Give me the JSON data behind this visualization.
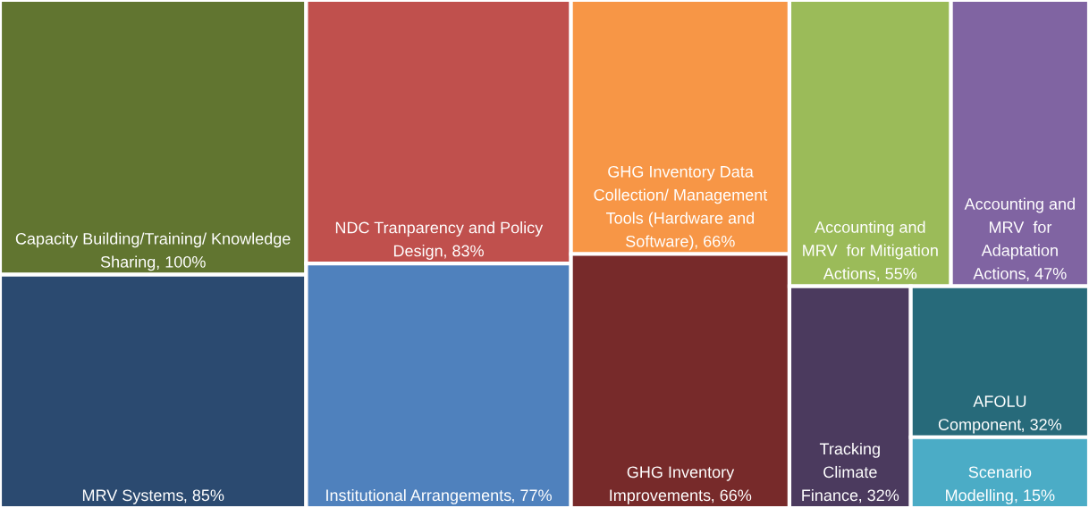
{
  "chart_data": {
    "type": "other",
    "categories": [
      "Capacity Building/Training/ Knowledge Sharing",
      "MRV Systems",
      "NDC Tranparency and Policy Design",
      "Institutional Arrangements",
      "GHG Inventory Data Collection/ Management Tools (Hardware and Software)",
      "GHG Inventory Improvements",
      "Accounting and MRV  for Mitigation Actions",
      "Accounting and MRV  for Adaptation Actions",
      "Tracking Climate Finance",
      "AFOLU Component",
      "Scenario Modelling"
    ],
    "values": [
      100,
      85,
      83,
      77,
      66,
      66,
      55,
      47,
      32,
      32,
      15
    ],
    "value_labels": [
      ", 100%",
      ", 85%",
      ", 83%",
      ", 77%",
      ", 66%",
      ", 66%",
      ", 55%",
      ", 47%",
      ", 32%",
      ", 32%",
      ", 15%"
    ],
    "colors": [
      "#617530",
      "#2b4a70",
      "#c0504d",
      "#4f81bd",
      "#f79646",
      "#772a2a",
      "#9bbb59",
      "#8064a2",
      "#4b3a5e",
      "#276a7a",
      "#4bacc6"
    ]
  }
}
